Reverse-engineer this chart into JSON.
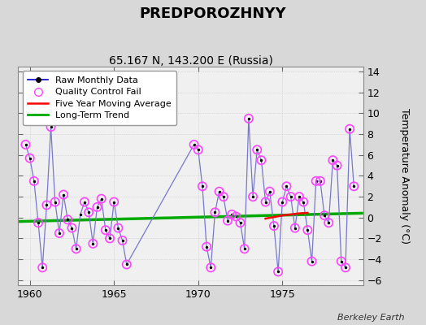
{
  "title": "PREDPOROZHNYY",
  "subtitle": "65.167 N, 143.200 E (Russia)",
  "ylabel": "Temperature Anomaly (°C)",
  "credit": "Berkeley Earth",
  "xlim": [
    1959.3,
    1979.8
  ],
  "ylim": [
    -6.5,
    14.5
  ],
  "yticks": [
    -6,
    -4,
    -2,
    0,
    2,
    4,
    6,
    8,
    10,
    12,
    14
  ],
  "xticks": [
    1960,
    1965,
    1970,
    1975
  ],
  "bg_color": "#d8d8d8",
  "plot_bg": "#f0f0f0",
  "raw_line_color": "#7777cc",
  "raw_dot_color": "#000000",
  "qc_fail_color": "#ff44ff",
  "ma_color": "red",
  "trend_color": "#00aa00",
  "trend_x": [
    1959.3,
    1979.8
  ],
  "trend_y": [
    -0.38,
    0.42
  ],
  "raw_x": [
    1959.75,
    1960.0,
    1960.25,
    1960.5,
    1960.75,
    1961.0,
    1961.25,
    1961.5,
    1961.75,
    1962.0,
    1962.25,
    1962.5,
    1962.75,
    1963.0,
    1963.25,
    1963.5,
    1963.75,
    1964.0,
    1964.25,
    1964.5,
    1964.75,
    1965.0,
    1965.25,
    1965.5,
    1965.75,
    1969.75,
    1970.0,
    1970.25,
    1970.5,
    1970.75,
    1971.0,
    1971.25,
    1971.5,
    1971.75,
    1972.0,
    1972.25,
    1972.5,
    1972.75,
    1973.0,
    1973.25,
    1973.5,
    1973.75,
    1974.0,
    1974.25,
    1974.5,
    1974.75,
    1975.0,
    1975.25,
    1975.5,
    1975.75,
    1976.0,
    1976.25,
    1976.5,
    1976.75,
    1977.0,
    1977.25,
    1977.5,
    1977.75,
    1978.0,
    1978.25,
    1978.5,
    1978.75,
    1979.0,
    1979.25
  ],
  "raw_y": [
    7.0,
    5.7,
    3.5,
    -0.5,
    -4.8,
    1.2,
    8.7,
    1.5,
    -1.5,
    2.2,
    -0.2,
    -1.0,
    -3.0,
    0.3,
    1.5,
    0.5,
    -2.5,
    1.0,
    1.8,
    -1.2,
    -2.0,
    1.5,
    -1.0,
    -2.2,
    -4.5,
    7.0,
    6.5,
    3.0,
    -2.8,
    -4.8,
    0.5,
    2.5,
    2.0,
    -0.3,
    0.3,
    0.1,
    -0.5,
    -3.0,
    9.5,
    2.0,
    6.5,
    5.5,
    1.5,
    2.5,
    -0.8,
    -5.2,
    1.5,
    3.0,
    2.0,
    -1.0,
    2.0,
    1.5,
    -1.2,
    -4.2,
    3.5,
    3.5,
    0.2,
    -0.5,
    5.5,
    5.0,
    -4.2,
    -4.8,
    8.5,
    3.0
  ],
  "qc_x": [
    1959.75,
    1960.0,
    1960.25,
    1960.5,
    1960.75,
    1961.0,
    1961.25,
    1961.5,
    1961.75,
    1962.0,
    1962.25,
    1962.5,
    1962.75,
    1963.25,
    1963.5,
    1963.75,
    1964.0,
    1964.25,
    1964.5,
    1964.75,
    1965.0,
    1965.25,
    1965.5,
    1965.75,
    1969.75,
    1970.0,
    1970.25,
    1970.5,
    1970.75,
    1971.0,
    1971.25,
    1971.5,
    1971.75,
    1972.0,
    1972.25,
    1972.5,
    1972.75,
    1973.0,
    1973.25,
    1973.5,
    1973.75,
    1974.0,
    1974.25,
    1974.5,
    1974.75,
    1975.0,
    1975.25,
    1975.5,
    1975.75,
    1976.0,
    1976.25,
    1976.5,
    1976.75,
    1977.0,
    1977.25,
    1977.5,
    1977.75,
    1978.0,
    1978.25,
    1978.5,
    1978.75,
    1979.0,
    1979.25
  ],
  "qc_y": [
    7.0,
    5.7,
    3.5,
    -0.5,
    -4.8,
    1.2,
    8.7,
    1.5,
    -1.5,
    2.2,
    -0.2,
    -1.0,
    -3.0,
    1.5,
    0.5,
    -2.5,
    1.0,
    1.8,
    -1.2,
    -2.0,
    1.5,
    -1.0,
    -2.2,
    -4.5,
    7.0,
    6.5,
    3.0,
    -2.8,
    -4.8,
    0.5,
    2.5,
    2.0,
    -0.3,
    0.3,
    0.1,
    -0.5,
    -3.0,
    9.5,
    2.0,
    6.5,
    5.5,
    1.5,
    2.5,
    -0.8,
    -5.2,
    1.5,
    3.0,
    2.0,
    -1.0,
    2.0,
    1.5,
    -1.2,
    -4.2,
    3.5,
    3.5,
    0.2,
    -0.5,
    5.5,
    5.0,
    -4.2,
    -4.8,
    8.5,
    3.0
  ],
  "ma_x": [
    1974.0,
    1974.5,
    1975.0,
    1975.5,
    1976.0,
    1976.5
  ],
  "ma_y": [
    -0.1,
    0.05,
    0.2,
    0.3,
    0.4,
    0.45
  ]
}
